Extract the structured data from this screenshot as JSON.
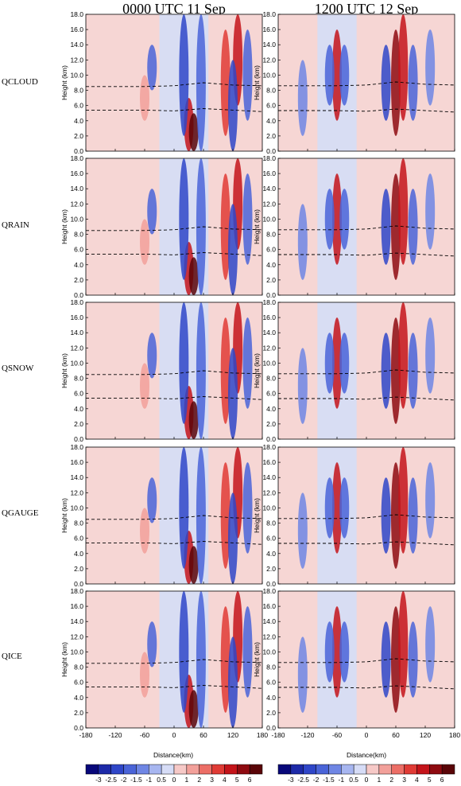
{
  "column_titles": [
    "0000 UTC 11 Sep",
    "1200 UTC 12 Sep"
  ],
  "row_labels": [
    "QCLOUD",
    "QRAIN",
    "QSNOW",
    "QGAUGE",
    "QICE"
  ],
  "chart_data": {
    "type": "heatmap",
    "xlabel": "Distance(km)",
    "ylabel": "Height (km)",
    "xlim": [
      -180,
      180
    ],
    "ylim": [
      0,
      18
    ],
    "x_ticks": [
      "-180",
      "-120",
      "-60",
      "0",
      "60",
      "120",
      "180"
    ],
    "y_ticks": [
      "0.0",
      "2.0",
      "4.0",
      "6.0",
      "8.0",
      "10.0",
      "12.0",
      "14.0",
      "16.0",
      "18.0"
    ],
    "colorbar_levels": [
      "-3",
      "-2.5",
      "-2",
      "-1.5",
      "-1",
      "0.5",
      "0",
      "1",
      "2",
      "3",
      "4",
      "5",
      "6"
    ],
    "colorbar_colors": [
      "#08087a",
      "#1d2aa8",
      "#2f46c8",
      "#4a64d8",
      "#6f86e4",
      "#a7b6f0",
      "#d6dcf6",
      "#f6c9c7",
      "#f2a09a",
      "#ec6e66",
      "#e03b35",
      "#c4141a",
      "#8e0a10",
      "#5a0508"
    ],
    "background_colors": {
      "positive": "#f6d6d4",
      "negative": "#d8ddf3"
    },
    "panels": [
      {
        "row": "QCLOUD",
        "column": "0000 UTC 11 Sep",
        "dashed_levels": [
          [
            -180,
            8.5
          ],
          [
            -60,
            8.5
          ],
          [
            0,
            8.6
          ],
          [
            60,
            9.0
          ],
          [
            120,
            8.7
          ],
          [
            180,
            8.6
          ],
          [
            -180,
            5.4
          ],
          [
            -60,
            5.4
          ],
          [
            0,
            5.3
          ],
          [
            60,
            5.6
          ],
          [
            120,
            5.4
          ],
          [
            180,
            5.2
          ]
        ]
      },
      {
        "row": "QCLOUD",
        "column": "1200 UTC 12 Sep"
      },
      {
        "row": "QRAIN",
        "column": "0000 UTC 11 Sep"
      },
      {
        "row": "QRAIN",
        "column": "1200 UTC 12 Sep"
      },
      {
        "row": "QSNOW",
        "column": "0000 UTC 11 Sep"
      },
      {
        "row": "QSNOW",
        "column": "1200 UTC 12 Sep"
      },
      {
        "row": "QGAUGE",
        "column": "0000 UTC 11 Sep"
      },
      {
        "row": "QGAUGE",
        "column": "1200 UTC 12 Sep"
      },
      {
        "row": "QICE",
        "column": "0000 UTC 11 Sep"
      },
      {
        "row": "QICE",
        "column": "1200 UTC 12 Sep"
      }
    ],
    "anomaly_features": {
      "0000 UTC 11 Sep": [
        {
          "x": 30,
          "z_bottom": 0,
          "z_top": 7,
          "value": 4,
          "sign": "positive"
        },
        {
          "x": 40,
          "z_bottom": 0,
          "z_top": 5,
          "value": 6,
          "sign": "positive"
        },
        {
          "x": 20,
          "z_bottom": 2,
          "z_top": 18,
          "value": -2,
          "sign": "negative"
        },
        {
          "x": 55,
          "z_bottom": 0,
          "z_top": 18,
          "value": -1.5,
          "sign": "negative"
        },
        {
          "x": 105,
          "z_bottom": 2,
          "z_top": 16,
          "value": 3,
          "sign": "positive"
        },
        {
          "x": 130,
          "z_bottom": 6,
          "z_top": 18,
          "value": 4,
          "sign": "positive"
        },
        {
          "x": 120,
          "z_bottom": 0,
          "z_top": 12,
          "value": -2,
          "sign": "negative"
        },
        {
          "x": 150,
          "z_bottom": 4,
          "z_top": 16,
          "value": -1.5,
          "sign": "negative"
        },
        {
          "x": -45,
          "z_bottom": 8,
          "z_top": 14,
          "value": -1.5,
          "sign": "negative"
        },
        {
          "x": -60,
          "z_bottom": 4,
          "z_top": 10,
          "value": 1,
          "sign": "positive"
        }
      ],
      "1200 UTC 12 Sep": [
        {
          "x": -60,
          "z_bottom": 4,
          "z_top": 16,
          "value": 4,
          "sign": "positive"
        },
        {
          "x": -45,
          "z_bottom": 6,
          "z_top": 14,
          "value": -1.5,
          "sign": "negative"
        },
        {
          "x": -75,
          "z_bottom": 6,
          "z_top": 14,
          "value": -1.5,
          "sign": "negative"
        },
        {
          "x": 60,
          "z_bottom": 2,
          "z_top": 16,
          "value": 5,
          "sign": "positive"
        },
        {
          "x": 75,
          "z_bottom": 4,
          "z_top": 18,
          "value": 4,
          "sign": "positive"
        },
        {
          "x": 40,
          "z_bottom": 4,
          "z_top": 14,
          "value": -2,
          "sign": "negative"
        },
        {
          "x": 95,
          "z_bottom": 4,
          "z_top": 14,
          "value": -1.5,
          "sign": "negative"
        },
        {
          "x": 130,
          "z_bottom": 6,
          "z_top": 16,
          "value": -1,
          "sign": "negative"
        },
        {
          "x": -130,
          "z_bottom": 2,
          "z_top": 12,
          "value": -1,
          "sign": "negative"
        }
      ]
    }
  }
}
